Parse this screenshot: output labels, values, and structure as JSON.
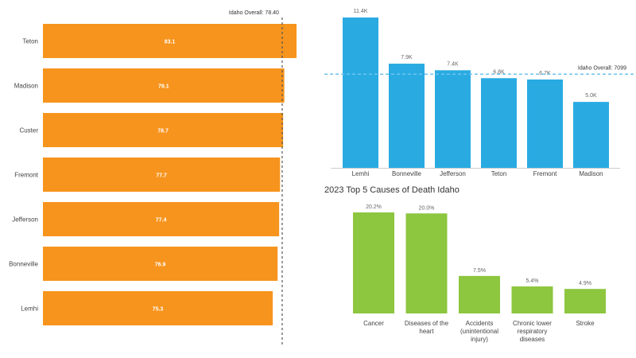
{
  "colors": {
    "orange": "#f7941d",
    "blue": "#29abe2",
    "green": "#8dc63f",
    "ref_dark": "#555555",
    "ref_blue": "#6fc3ee"
  },
  "chart_data": [
    {
      "id": "life-expectancy",
      "type": "bar",
      "orientation": "horizontal",
      "title": "",
      "categories": [
        "Teton",
        "Madison",
        "Custer",
        "Fremont",
        "Jefferson",
        "Bonneville",
        "Lemhi"
      ],
      "values": [
        83.1,
        79.1,
        78.7,
        77.7,
        77.4,
        76.9,
        75.3
      ],
      "labels": [
        "83.1",
        "79.1",
        "78.7",
        "77.7",
        "77.4",
        "76.9",
        "75.3"
      ],
      "xlim": [
        0,
        85
      ],
      "reference": {
        "label": "Idaho Overall: 78.40",
        "value": 78.4
      }
    },
    {
      "id": "county-values",
      "type": "bar",
      "orientation": "vertical",
      "title": "",
      "categories": [
        "Lemhi",
        "Bonneville",
        "Jefferson",
        "Teton",
        "Fremont",
        "Madison"
      ],
      "values": [
        11400,
        7900,
        7400,
        6800,
        6700,
        5000
      ],
      "labels": [
        "11.4K",
        "7.9K",
        "7.4K",
        "6.8K",
        "6.7K",
        "5.0K"
      ],
      "ylim": [
        0,
        11400
      ],
      "reference": {
        "label": "Idaho Overall: 7099",
        "value": 7099
      }
    },
    {
      "id": "causes-of-death",
      "type": "bar",
      "orientation": "vertical",
      "title": "2023 Top 5 Causes of Death Idaho",
      "categories": [
        [
          "Cancer"
        ],
        [
          "Diseases of the",
          "heart"
        ],
        [
          "Accidents",
          "(unintentional",
          "injury)"
        ],
        [
          "Chronic lower",
          "respiratory",
          "diseases"
        ],
        [
          "Stroke"
        ]
      ],
      "values": [
        20.2,
        20.0,
        7.5,
        5.4,
        4.9
      ],
      "labels": [
        "20.2%",
        "20.0%",
        "7.5%",
        "5.4%",
        "4.9%"
      ],
      "ylim": [
        0,
        20.2
      ]
    }
  ]
}
